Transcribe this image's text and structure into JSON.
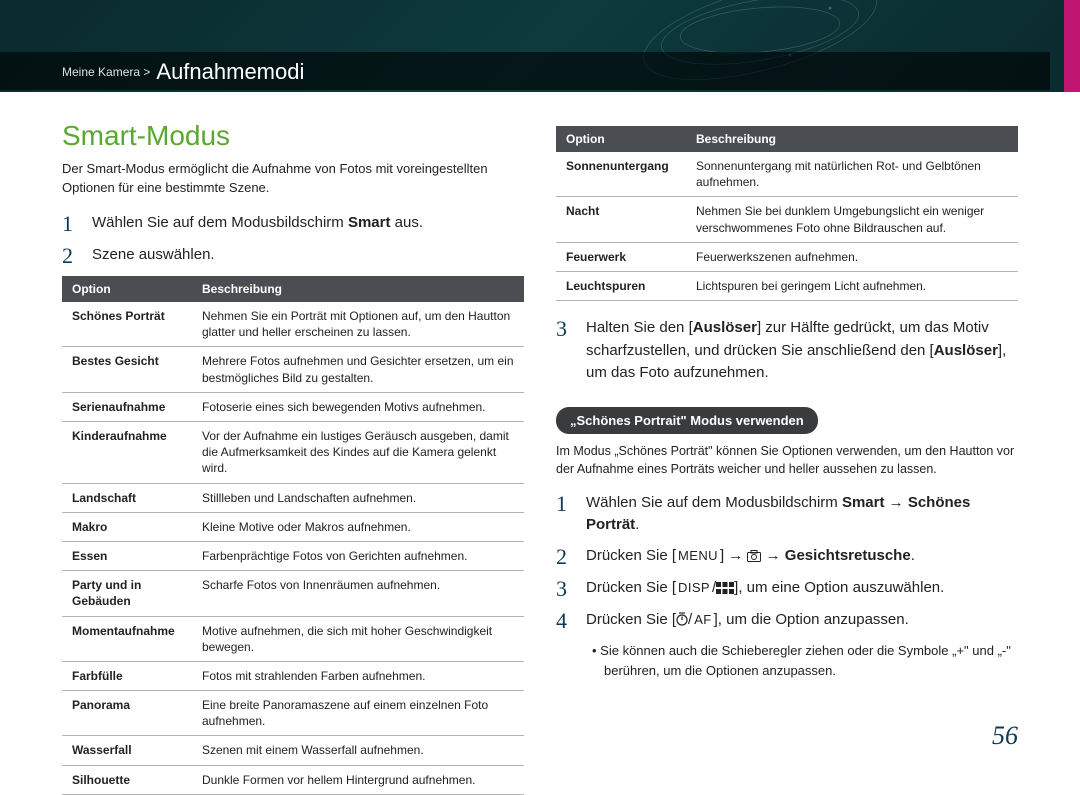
{
  "header": {
    "breadcrumb_parent": "Meine Kamera >",
    "breadcrumb_current": "Aufnahmemodi"
  },
  "left": {
    "section_title": "Smart-Modus",
    "intro": "Der Smart-Modus ermöglicht die Aufnahme von Fotos mit voreingestellten Optionen für eine bestimmte Szene.",
    "step1_pre": "Wählen Sie auf dem Modusbildschirm ",
    "step1_bold": "Smart",
    "step1_post": " aus.",
    "step2": "Szene auswählen.",
    "table_head_option": "Option",
    "table_head_desc": "Beschreibung",
    "rows": [
      {
        "opt": "Schönes Porträt",
        "desc": "Nehmen Sie ein Porträt mit Optionen auf, um den Hautton glatter und heller erscheinen zu lassen."
      },
      {
        "opt": "Bestes Gesicht",
        "desc": "Mehrere Fotos aufnehmen und Gesichter ersetzen, um ein bestmögliches Bild zu gestalten."
      },
      {
        "opt": "Serienaufnahme",
        "desc": "Fotoserie eines sich bewegenden Motivs aufnehmen."
      },
      {
        "opt": "Kinderaufnahme",
        "desc": "Vor der Aufnahme ein lustiges Geräusch ausgeben, damit die Aufmerksamkeit des Kindes auf die Kamera gelenkt wird."
      },
      {
        "opt": "Landschaft",
        "desc": "Stillleben und Landschaften aufnehmen."
      },
      {
        "opt": "Makro",
        "desc": "Kleine Motive oder Makros aufnehmen."
      },
      {
        "opt": "Essen",
        "desc": "Farbenprächtige Fotos von Gerichten aufnehmen."
      },
      {
        "opt": "Party und in Gebäuden",
        "desc": "Scharfe Fotos von Innenräumen aufnehmen."
      },
      {
        "opt": "Momentaufnahme",
        "desc": "Motive aufnehmen, die sich mit hoher Geschwindigkeit bewegen."
      },
      {
        "opt": "Farbfülle",
        "desc": "Fotos mit strahlenden Farben aufnehmen."
      },
      {
        "opt": "Panorama",
        "desc": "Eine breite Panoramaszene auf einem einzelnen Foto aufnehmen."
      },
      {
        "opt": "Wasserfall",
        "desc": "Szenen mit einem Wasserfall aufnehmen."
      },
      {
        "opt": "Silhouette",
        "desc": "Dunkle Formen vor hellem Hintergrund aufnehmen."
      }
    ]
  },
  "right": {
    "table_head_option": "Option",
    "table_head_desc": "Beschreibung",
    "rows": [
      {
        "opt": "Sonnenuntergang",
        "desc": "Sonnenuntergang mit natürlichen Rot- und Gelbtönen aufnehmen."
      },
      {
        "opt": "Nacht",
        "desc": "Nehmen Sie bei dunklem Umgebungslicht ein weniger verschwommenes Foto ohne Bildrauschen auf."
      },
      {
        "opt": "Feuerwerk",
        "desc": "Feuerwerkszenen aufnehmen."
      },
      {
        "opt": "Leuchtspuren",
        "desc": "Lichtspuren bei geringem Licht aufnehmen."
      }
    ],
    "step3_pre": "Halten Sie den [",
    "step3_b1": "Auslöser",
    "step3_mid": "] zur Hälfte gedrückt, um das Motiv scharfzustellen, und drücken Sie anschließend den [",
    "step3_b2": "Auslöser",
    "step3_post": "], um das Foto aufzunehmen.",
    "pill": "„Schönes Portrait\" Modus  verwenden",
    "subintro": "Im Modus „Schönes Porträt\" können Sie Optionen verwenden, um den Hautton vor der Aufnahme eines Porträts weicher und heller aussehen zu lassen.",
    "sp1_pre": "Wählen Sie auf dem Modusbildschirm ",
    "sp1_b1": "Smart",
    "sp1_arrow": " → ",
    "sp1_b2": "Schönes Porträt",
    "sp1_post": ".",
    "sp2_pre": "Drücken Sie [",
    "sp2_menu": "MENU",
    "sp2_mid": "] → ",
    "sp2_mid2": " → ",
    "sp2_bold": "Gesichtsretusche",
    "sp2_post": ".",
    "sp3_pre": "Drücken Sie [",
    "sp3_disp": "DISP",
    "sp3_post": "], um eine Option auszuwählen.",
    "sp4_pre": "Drücken Sie [",
    "sp4_post": "], um die Option anzupassen.",
    "note": "•  Sie können auch die Schieberegler ziehen oder die Symbole „+\" und „-\" berühren, um die Optionen anzupassen."
  },
  "page_number": "56"
}
